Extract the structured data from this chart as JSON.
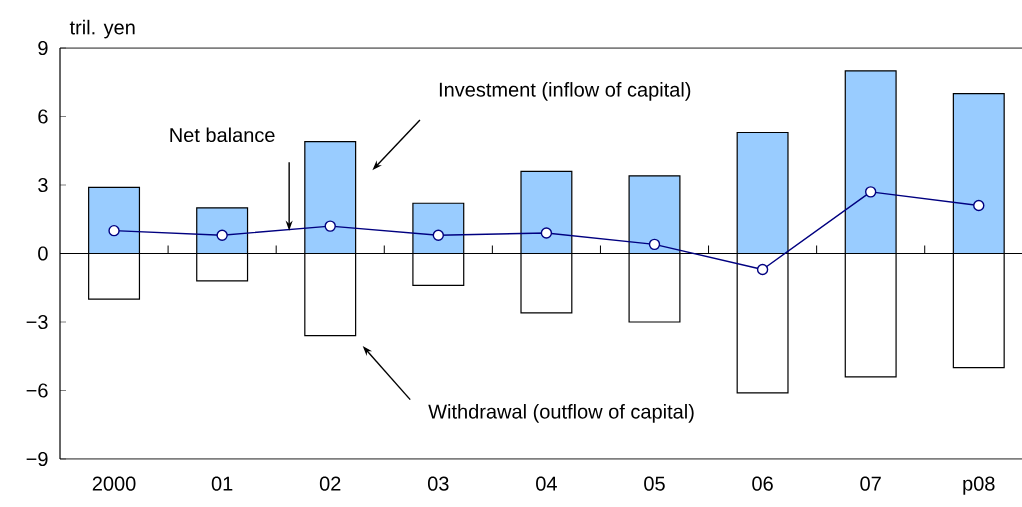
{
  "chart_data": {
    "type": "bar",
    "ylabel": "tril. yen",
    "categories": [
      "2000",
      "01",
      "02",
      "03",
      "04",
      "05",
      "06",
      "07",
      "p08"
    ],
    "stacked": true,
    "ylim": [
      -9,
      9
    ],
    "yticks": [
      {
        "value": -9,
        "label": "−9"
      },
      {
        "value": -6,
        "label": "−6"
      },
      {
        "value": -3,
        "label": "−3"
      },
      0,
      3,
      6,
      9
    ],
    "series": [
      {
        "name": "Investment (inflow of capital)",
        "color": "#99ccff",
        "values": [
          2.9,
          2.0,
          4.9,
          2.2,
          3.6,
          3.4,
          5.3,
          8.0,
          7.0
        ]
      },
      {
        "name": "Withdrawal (outflow of capital)",
        "color": "#ffffff",
        "values": [
          -2.0,
          -1.2,
          -3.6,
          -1.4,
          -2.6,
          -3.0,
          -6.1,
          -5.4,
          -5.0
        ]
      },
      {
        "name": "Net balance",
        "type": "line",
        "color": "#000080",
        "marker": "circle",
        "values": [
          1.0,
          0.8,
          1.2,
          0.8,
          0.9,
          0.4,
          -0.7,
          2.7,
          2.1
        ]
      }
    ]
  }
}
